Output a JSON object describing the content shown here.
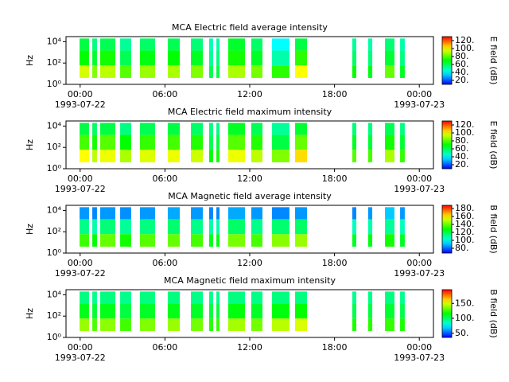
{
  "chart_data": [
    {
      "type": "spectrogram",
      "title": "MCA  Electric field average intensity",
      "ylabel": "Hz",
      "colorbar_label": "E field (dB)",
      "xlim": [
        -1,
        25
      ],
      "xticks": [
        {
          "value": 0,
          "label": "00:00"
        },
        {
          "value": 6,
          "label": "06:00"
        },
        {
          "value": 12,
          "label": "12:00"
        },
        {
          "value": 18,
          "label": "18:00"
        },
        {
          "value": 24,
          "label": ""
        }
      ],
      "date_labels": [
        {
          "value": 0,
          "label": "1993-07-22"
        },
        {
          "value": 24,
          "label": "1993-07-23"
        }
      ],
      "xtick_extra": [
        {
          "value": 24,
          "label": "00:00"
        }
      ],
      "ylim": [
        1,
        30000
      ],
      "log_y": true,
      "yticks": [
        {
          "value": 1,
          "label": "10⁰"
        },
        {
          "value": 100,
          "label": "10²"
        },
        {
          "value": 10000,
          "label": "10⁴"
        }
      ],
      "clim": [
        10,
        130
      ],
      "cticks": [
        {
          "value": 20,
          "label": "20."
        },
        {
          "value": 40,
          "label": "40."
        },
        {
          "value": 60,
          "label": "60."
        },
        {
          "value": 80,
          "label": "80."
        },
        {
          "value": 100,
          "label": "100."
        },
        {
          "value": 120,
          "label": "120."
        }
      ],
      "bins": [
        4,
        60,
        1500,
        20000
      ],
      "intervals": [
        [
          -0.04,
          0.63
        ],
        [
          0.86,
          1.19
        ],
        [
          1.42,
          2.49
        ],
        [
          2.83,
          3.61
        ],
        [
          4.23,
          5.3
        ],
        [
          6.2,
          7.05
        ],
        [
          7.84,
          8.68
        ],
        [
          9.13,
          9.41
        ],
        [
          9.64,
          9.86
        ],
        [
          10.48,
          11.66
        ],
        [
          12.11,
          12.9
        ],
        [
          13.57,
          14.81
        ],
        [
          15.21,
          16.05
        ],
        [
          19.26,
          19.54
        ],
        [
          20.38,
          20.67
        ],
        [
          21.57,
          22.24
        ],
        [
          22.64,
          22.97
        ]
      ],
      "z": [
        [
          95,
          70,
          62
        ],
        [
          85,
          65,
          55
        ],
        [
          92,
          72,
          60
        ],
        [
          80,
          60,
          52
        ],
        [
          88,
          68,
          58
        ],
        [
          90,
          70,
          60
        ],
        [
          85,
          66,
          56
        ],
        [
          60,
          52,
          48
        ],
        [
          62,
          55,
          50
        ],
        [
          90,
          72,
          65
        ],
        [
          84,
          66,
          58
        ],
        [
          75,
          50,
          40
        ],
        [
          100,
          75,
          62
        ],
        [
          70,
          58,
          52
        ],
        [
          68,
          56,
          50
        ],
        [
          82,
          64,
          56
        ],
        [
          66,
          55,
          50
        ]
      ]
    },
    {
      "type": "spectrogram",
      "title": "MCA  Electric field maximum intensity",
      "ylabel": "Hz",
      "colorbar_label": "E field (dB)",
      "xlim": [
        -1,
        25
      ],
      "xticks": [
        {
          "value": 0,
          "label": "00:00"
        },
        {
          "value": 6,
          "label": "06:00"
        },
        {
          "value": 12,
          "label": "12:00"
        },
        {
          "value": 18,
          "label": "18:00"
        },
        {
          "value": 24,
          "label": ""
        }
      ],
      "date_labels": [
        {
          "value": 0,
          "label": "1993-07-22"
        },
        {
          "value": 24,
          "label": "1993-07-23"
        }
      ],
      "xtick_extra": [
        {
          "value": 24,
          "label": "00:00"
        }
      ],
      "ylim": [
        1,
        30000
      ],
      "log_y": true,
      "yticks": [
        {
          "value": 1,
          "label": "10⁰"
        },
        {
          "value": 100,
          "label": "10²"
        },
        {
          "value": 10000,
          "label": "10⁴"
        }
      ],
      "clim": [
        10,
        130
      ],
      "cticks": [
        {
          "value": 20,
          "label": "20."
        },
        {
          "value": 40,
          "label": "40."
        },
        {
          "value": 60,
          "label": "60."
        },
        {
          "value": 80,
          "label": "80."
        },
        {
          "value": 100,
          "label": "100."
        },
        {
          "value": 120,
          "label": "120."
        }
      ],
      "bins": [
        4,
        60,
        1500,
        20000
      ],
      "intervals": [
        [
          -0.04,
          0.63
        ],
        [
          0.86,
          1.19
        ],
        [
          1.42,
          2.49
        ],
        [
          2.83,
          3.61
        ],
        [
          4.23,
          5.3
        ],
        [
          6.2,
          7.05
        ],
        [
          7.84,
          8.68
        ],
        [
          9.13,
          9.41
        ],
        [
          9.64,
          9.86
        ],
        [
          10.48,
          11.66
        ],
        [
          12.11,
          12.9
        ],
        [
          13.57,
          14.81
        ],
        [
          15.21,
          16.05
        ],
        [
          19.26,
          19.54
        ],
        [
          20.38,
          20.67
        ],
        [
          21.57,
          22.24
        ],
        [
          22.64,
          22.97
        ]
      ],
      "z": [
        [
          100,
          78,
          62
        ],
        [
          92,
          72,
          58
        ],
        [
          98,
          80,
          62
        ],
        [
          90,
          70,
          55
        ],
        [
          96,
          76,
          60
        ],
        [
          98,
          78,
          62
        ],
        [
          94,
          74,
          58
        ],
        [
          70,
          60,
          55
        ],
        [
          72,
          62,
          55
        ],
        [
          98,
          80,
          66
        ],
        [
          92,
          74,
          60
        ],
        [
          85,
          62,
          52
        ],
        [
          104,
          82,
          64
        ],
        [
          80,
          66,
          56
        ],
        [
          78,
          64,
          55
        ],
        [
          90,
          72,
          60
        ],
        [
          76,
          64,
          55
        ]
      ]
    },
    {
      "type": "spectrogram",
      "title": "MCA  Magnetic field average intensity",
      "ylabel": "Hz",
      "colorbar_label": "B field (dB)",
      "xlim": [
        -1,
        25
      ],
      "xticks": [
        {
          "value": 0,
          "label": "00:00"
        },
        {
          "value": 6,
          "label": "06:00"
        },
        {
          "value": 12,
          "label": "12:00"
        },
        {
          "value": 18,
          "label": "18:00"
        },
        {
          "value": 24,
          "label": ""
        }
      ],
      "date_labels": [
        {
          "value": 0,
          "label": "1993-07-22"
        },
        {
          "value": 24,
          "label": "1993-07-23"
        }
      ],
      "xtick_extra": [
        {
          "value": 24,
          "label": "00:00"
        }
      ],
      "ylim": [
        1,
        30000
      ],
      "log_y": true,
      "yticks": [
        {
          "value": 1,
          "label": "10⁰"
        },
        {
          "value": 100,
          "label": "10²"
        },
        {
          "value": 10000,
          "label": "10⁴"
        }
      ],
      "clim": [
        68,
        188
      ],
      "cticks": [
        {
          "value": 80,
          "label": "80."
        },
        {
          "value": 100,
          "label": "100."
        },
        {
          "value": 120,
          "label": "120."
        },
        {
          "value": 140,
          "label": "140."
        },
        {
          "value": 160,
          "label": "160."
        },
        {
          "value": 180,
          "label": "180."
        }
      ],
      "bins": [
        4,
        60,
        1500,
        20000
      ],
      "intervals": [
        [
          -0.04,
          0.63
        ],
        [
          0.86,
          1.19
        ],
        [
          1.42,
          2.49
        ],
        [
          2.83,
          3.61
        ],
        [
          4.23,
          5.3
        ],
        [
          6.2,
          7.05
        ],
        [
          7.84,
          8.68
        ],
        [
          9.13,
          9.41
        ],
        [
          9.64,
          9.86
        ],
        [
          10.48,
          11.66
        ],
        [
          12.11,
          12.9
        ],
        [
          13.57,
          14.81
        ],
        [
          15.21,
          16.05
        ],
        [
          19.26,
          19.54
        ],
        [
          20.38,
          20.67
        ],
        [
          21.57,
          22.24
        ],
        [
          22.64,
          22.97
        ]
      ],
      "z": [
        [
          135,
          112,
          86
        ],
        [
          128,
          108,
          84
        ],
        [
          140,
          114,
          86
        ],
        [
          130,
          110,
          85
        ],
        [
          138,
          113,
          86
        ],
        [
          140,
          115,
          88
        ],
        [
          136,
          112,
          86
        ],
        [
          125,
          108,
          84
        ],
        [
          126,
          108,
          84
        ],
        [
          142,
          116,
          88
        ],
        [
          136,
          112,
          86
        ],
        [
          144,
          115,
          84
        ],
        [
          146,
          116,
          86
        ],
        [
          124,
          106,
          84
        ],
        [
          126,
          108,
          86
        ],
        [
          130,
          110,
          92
        ],
        [
          124,
          106,
          86
        ]
      ]
    },
    {
      "type": "spectrogram",
      "title": "MCA  Magnetic field maximum intensity",
      "ylabel": "Hz",
      "colorbar_label": "B field (dB)",
      "xlim": [
        -1,
        25
      ],
      "xticks": [
        {
          "value": 0,
          "label": "00:00"
        },
        {
          "value": 6,
          "label": "06:00"
        },
        {
          "value": 12,
          "label": "12:00"
        },
        {
          "value": 18,
          "label": "18:00"
        },
        {
          "value": 24,
          "label": ""
        }
      ],
      "date_labels": [
        {
          "value": 0,
          "label": "1993-07-22"
        },
        {
          "value": 24,
          "label": "1993-07-23"
        }
      ],
      "xtick_extra": [
        {
          "value": 24,
          "label": "00:00"
        }
      ],
      "ylim": [
        1,
        30000
      ],
      "log_y": true,
      "yticks": [
        {
          "value": 1,
          "label": "10⁰"
        },
        {
          "value": 100,
          "label": "10²"
        },
        {
          "value": 10000,
          "label": "10⁴"
        }
      ],
      "clim": [
        36,
        196
      ],
      "cticks": [
        {
          "value": 50,
          "label": "50."
        },
        {
          "value": 100,
          "label": "100."
        },
        {
          "value": 150,
          "label": "150."
        }
      ],
      "bins": [
        4,
        60,
        1500,
        20000
      ],
      "intervals": [
        [
          -0.04,
          0.63
        ],
        [
          0.86,
          1.19
        ],
        [
          1.42,
          2.49
        ],
        [
          2.83,
          3.61
        ],
        [
          4.23,
          5.3
        ],
        [
          6.2,
          7.05
        ],
        [
          7.84,
          8.68
        ],
        [
          9.13,
          9.41
        ],
        [
          9.64,
          9.86
        ],
        [
          10.48,
          11.66
        ],
        [
          12.11,
          12.9
        ],
        [
          13.57,
          14.81
        ],
        [
          15.21,
          16.05
        ],
        [
          19.26,
          19.54
        ],
        [
          20.38,
          20.67
        ],
        [
          21.57,
          22.24
        ],
        [
          22.64,
          22.97
        ]
      ],
      "z": [
        [
          140,
          112,
          96
        ],
        [
          128,
          108,
          94
        ],
        [
          138,
          112,
          96
        ],
        [
          126,
          106,
          94
        ],
        [
          136,
          110,
          96
        ],
        [
          140,
          112,
          96
        ],
        [
          134,
          110,
          95
        ],
        [
          122,
          106,
          94
        ],
        [
          124,
          106,
          94
        ],
        [
          142,
          114,
          96
        ],
        [
          134,
          110,
          95
        ],
        [
          145,
          114,
          96
        ],
        [
          150,
          116,
          96
        ],
        [
          120,
          104,
          94
        ],
        [
          122,
          106,
          95
        ],
        [
          124,
          108,
          96
        ],
        [
          120,
          104,
          94
        ]
      ]
    }
  ]
}
